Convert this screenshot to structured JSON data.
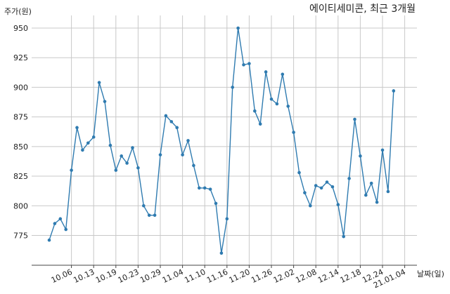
{
  "chart_data": {
    "type": "line",
    "title": "에이티세미콘, 최근 3개월",
    "ylabel": "주가(원)",
    "xlabel": "날짜(일)",
    "grid": true,
    "ylim": [
      755,
      960
    ],
    "yticks": [
      775,
      800,
      825,
      850,
      875,
      900,
      925,
      950
    ],
    "x_tick_labels": [
      "10.06",
      "10.13",
      "10.19",
      "10.23",
      "10.29",
      "11.04",
      "11.10",
      "11.16",
      "11.20",
      "11.26",
      "12.02",
      "12.08",
      "12.14",
      "12.18",
      "12.24",
      "21.01.04"
    ],
    "x_tick_index": [
      4,
      8,
      12,
      16,
      20,
      24,
      28,
      32,
      36,
      40,
      44,
      48,
      52,
      56,
      60,
      64
    ],
    "series": [
      {
        "color": "#2f7bb0",
        "values": [
          771,
          785,
          789,
          780,
          830,
          866,
          847,
          853,
          858,
          904,
          888,
          851,
          830,
          842,
          836,
          849,
          832,
          800,
          792,
          792,
          843,
          876,
          871,
          866,
          843,
          855,
          834,
          815,
          815,
          814,
          802,
          760,
          789,
          900,
          950,
          919,
          920,
          880,
          869,
          913,
          890,
          886,
          911,
          884,
          862,
          828,
          811,
          800,
          817,
          815,
          820,
          816,
          801,
          774,
          823,
          873,
          842,
          809,
          819,
          803,
          847,
          812,
          897
        ]
      }
    ]
  }
}
